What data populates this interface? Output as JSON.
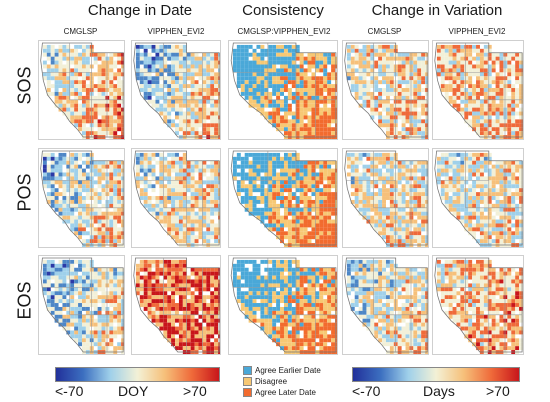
{
  "group_titles": [
    "Change in Date",
    "Consistency",
    "Change in Variation"
  ],
  "column_headers": [
    "CMGLSP",
    "VIPPHEN_EVI2",
    "CMGLSP:VIPPHEN_EVI2",
    "CMGLSP",
    "VIPPHEN_EVI2"
  ],
  "row_labels": [
    "SOS",
    "POS",
    "EOS"
  ],
  "legend_left": {
    "min": "<-70",
    "unit": "DOY",
    "max": ">70"
  },
  "legend_right": {
    "min": "<-70",
    "unit": "Days",
    "max": ">70"
  },
  "consistency_legend": [
    {
      "label": "Agree Earlier Date",
      "color": "#4aa8d8"
    },
    {
      "label": "Disagree",
      "color": "#f7c874"
    },
    {
      "label": "Agree Later Date",
      "color": "#f26b2e"
    }
  ],
  "colors": {
    "dark_blue": "#2b3aa6",
    "light_blue": "#8cc6e6",
    "pale": "#f2f0d8",
    "orange": "#f5a25a",
    "dark_red": "#cc1f1f"
  }
}
